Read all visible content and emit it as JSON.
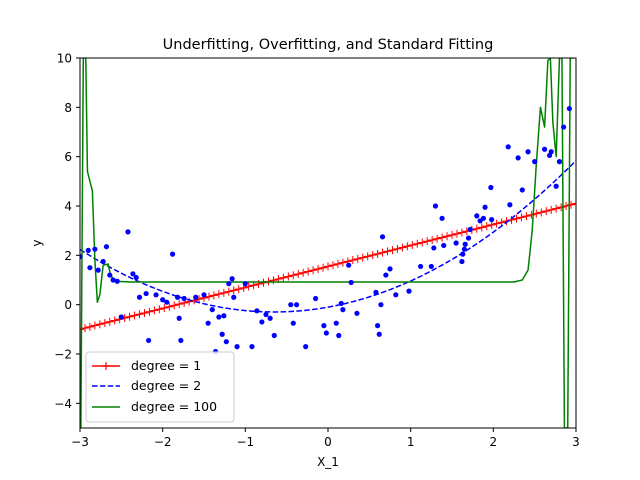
{
  "chart_data": {
    "type": "scatter",
    "title": "Underfitting, Overfitting, and Standard Fitting",
    "xlabel": "X_1",
    "ylabel": "y",
    "xlim": [
      -3,
      3
    ],
    "ylim": [
      -5,
      10
    ],
    "xticks": [
      {
        "value": -3,
        "label": "−3"
      },
      {
        "value": -2,
        "label": "−2"
      },
      {
        "value": -1,
        "label": "−1"
      },
      {
        "value": 0,
        "label": "0"
      },
      {
        "value": 1,
        "label": "1"
      },
      {
        "value": 2,
        "label": "2"
      },
      {
        "value": 3,
        "label": "3"
      }
    ],
    "yticks": [
      {
        "value": -4,
        "label": "−4"
      },
      {
        "value": -2,
        "label": "−2"
      },
      {
        "value": 0,
        "label": "0"
      },
      {
        "value": 2,
        "label": "2"
      },
      {
        "value": 4,
        "label": "4"
      },
      {
        "value": 6,
        "label": "6"
      },
      {
        "value": 8,
        "label": "8"
      },
      {
        "value": 10,
        "label": "10"
      }
    ],
    "legend_position": "lower-left",
    "grid": false,
    "colors": {
      "points": "#0000ff",
      "degree1": "#ff0000",
      "degree2": "#0000ff",
      "degree100": "#008000"
    },
    "points": [
      [
        -3.0,
        1.95
      ],
      [
        -2.9,
        2.2
      ],
      [
        -2.88,
        1.5
      ],
      [
        -2.82,
        2.25
      ],
      [
        -2.78,
        1.4
      ],
      [
        -2.72,
        1.75
      ],
      [
        -2.68,
        2.35
      ],
      [
        -2.64,
        1.2
      ],
      [
        -2.6,
        1.0
      ],
      [
        -2.55,
        0.95
      ],
      [
        -2.5,
        -0.5
      ],
      [
        -2.42,
        2.95
      ],
      [
        -2.36,
        1.25
      ],
      [
        -2.32,
        1.1
      ],
      [
        -2.28,
        0.3
      ],
      [
        -2.2,
        0.45
      ],
      [
        -2.17,
        -1.45
      ],
      [
        -2.08,
        0.4
      ],
      [
        -2.0,
        0.2
      ],
      [
        -1.95,
        0.1
      ],
      [
        -1.88,
        2.05
      ],
      [
        -1.82,
        0.3
      ],
      [
        -1.8,
        -0.55
      ],
      [
        -1.78,
        -1.45
      ],
      [
        -1.74,
        0.25
      ],
      [
        -1.6,
        0.3
      ],
      [
        -1.5,
        0.4
      ],
      [
        -1.45,
        -0.75
      ],
      [
        -1.4,
        -0.2
      ],
      [
        -1.36,
        -1.9
      ],
      [
        -1.32,
        -0.5
      ],
      [
        -1.28,
        -1.2
      ],
      [
        -1.26,
        -0.45
      ],
      [
        -1.23,
        -1.5
      ],
      [
        -1.2,
        0.85
      ],
      [
        -1.16,
        1.05
      ],
      [
        -1.14,
        0.3
      ],
      [
        -1.1,
        -1.7
      ],
      [
        -1.0,
        0.85
      ],
      [
        -0.92,
        -1.7
      ],
      [
        -0.86,
        -0.25
      ],
      [
        -0.8,
        -0.7
      ],
      [
        -0.75,
        -0.4
      ],
      [
        -0.7,
        -0.55
      ],
      [
        -0.65,
        -1.25
      ],
      [
        -0.45,
        0.0
      ],
      [
        -0.42,
        -0.75
      ],
      [
        -0.38,
        0.0
      ],
      [
        -0.27,
        -1.7
      ],
      [
        -0.15,
        0.25
      ],
      [
        -0.05,
        -0.85
      ],
      [
        -0.02,
        -1.15
      ],
      [
        0.1,
        -0.75
      ],
      [
        0.13,
        -1.25
      ],
      [
        0.16,
        0.05
      ],
      [
        0.18,
        -0.2
      ],
      [
        0.25,
        1.6
      ],
      [
        0.28,
        0.9
      ],
      [
        0.35,
        -0.35
      ],
      [
        0.58,
        0.5
      ],
      [
        0.6,
        -0.85
      ],
      [
        0.62,
        -1.2
      ],
      [
        0.64,
        0.0
      ],
      [
        0.66,
        2.75
      ],
      [
        0.7,
        1.2
      ],
      [
        0.75,
        1.45
      ],
      [
        0.82,
        0.4
      ],
      [
        0.98,
        0.55
      ],
      [
        1.12,
        1.55
      ],
      [
        1.25,
        1.55
      ],
      [
        1.28,
        2.3
      ],
      [
        1.3,
        4.0
      ],
      [
        1.38,
        3.5
      ],
      [
        1.4,
        2.4
      ],
      [
        1.55,
        2.5
      ],
      [
        1.62,
        1.75
      ],
      [
        1.63,
        2.05
      ],
      [
        1.65,
        2.25
      ],
      [
        1.66,
        2.45
      ],
      [
        1.7,
        2.7
      ],
      [
        1.72,
        3.05
      ],
      [
        1.8,
        3.6
      ],
      [
        1.84,
        3.4
      ],
      [
        1.88,
        3.5
      ],
      [
        1.9,
        3.95
      ],
      [
        1.97,
        4.75
      ],
      [
        1.98,
        3.45
      ],
      [
        2.18,
        6.4
      ],
      [
        2.2,
        4.05
      ],
      [
        2.3,
        5.95
      ],
      [
        2.35,
        4.65
      ],
      [
        2.42,
        6.2
      ],
      [
        2.5,
        5.8
      ],
      [
        2.62,
        6.3
      ],
      [
        2.68,
        6.05
      ],
      [
        2.7,
        6.2
      ],
      [
        2.76,
        4.8
      ],
      [
        2.8,
        5.8
      ],
      [
        2.85,
        7.2
      ],
      [
        2.92,
        7.95
      ]
    ],
    "series": [
      {
        "name": "degree = 1",
        "style": "red-plus-line",
        "coef": [
          1.55,
          0.85
        ]
      },
      {
        "name": "degree = 2",
        "style": "blue-dashed",
        "coef": [
          -0.1,
          0.6,
          0.46
        ]
      },
      {
        "name": "degree = 100",
        "style": "green-solid",
        "points": [
          [
            -2.99,
            -5.0
          ],
          [
            -2.96,
            10.0
          ],
          [
            -2.93,
            10.0
          ],
          [
            -2.91,
            5.4
          ],
          [
            -2.85,
            4.6
          ],
          [
            -2.82,
            1.8
          ],
          [
            -2.79,
            0.1
          ],
          [
            -2.76,
            0.4
          ],
          [
            -2.72,
            1.6
          ],
          [
            -2.66,
            1.65
          ],
          [
            -2.63,
            1.2
          ],
          [
            -2.58,
            0.95
          ],
          [
            -2.4,
            0.92
          ],
          [
            2.25,
            0.92
          ],
          [
            2.35,
            1.0
          ],
          [
            2.42,
            1.4
          ],
          [
            2.47,
            3.0
          ],
          [
            2.52,
            5.7
          ],
          [
            2.57,
            8.0
          ],
          [
            2.62,
            7.2
          ],
          [
            2.66,
            9.9
          ],
          [
            2.69,
            10.0
          ],
          [
            2.72,
            7.4
          ],
          [
            2.76,
            6.0
          ],
          [
            2.8,
            10.0
          ],
          [
            2.83,
            10.0
          ],
          [
            2.86,
            -5.0
          ],
          [
            2.9,
            -5.0
          ],
          [
            2.93,
            10.0
          ],
          [
            2.97,
            10.0
          ]
        ]
      }
    ]
  }
}
